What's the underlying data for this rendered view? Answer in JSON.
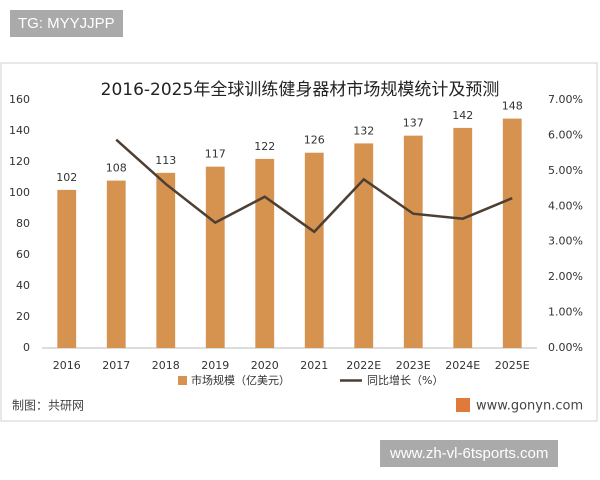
{
  "overlay_top": "TG: MYYJJPP",
  "overlay_bottom": "www.zh-vl-6tsports.com",
  "chart_data": {
    "type": "bar-line",
    "title": "2016-2025年全球训练健身器材市场规模统计及预测",
    "categories": [
      "2016",
      "2017",
      "2018",
      "2019",
      "2020",
      "2021",
      "2022E",
      "2023E",
      "2024E",
      "2025E"
    ],
    "series": [
      {
        "name": "市场规模（亿美元）",
        "type": "bar",
        "color": "#d6924f",
        "values": [
          102,
          108,
          113,
          117,
          122,
          126,
          132,
          137,
          142,
          148
        ]
      },
      {
        "name": "同比增长（%）",
        "type": "line",
        "axis": "y2",
        "color": "#4d3f33",
        "values": [
          null,
          5.88,
          4.63,
          3.54,
          4.27,
          3.28,
          4.76,
          3.79,
          3.65,
          4.23
        ]
      }
    ],
    "ylim": [
      0,
      160
    ],
    "yticks": [
      0,
      20,
      40,
      60,
      80,
      100,
      120,
      140,
      160
    ],
    "y2lim": [
      0,
      7
    ],
    "y2ticks": [
      {
        "value": 0,
        "label": "0.00%"
      },
      {
        "value": 1,
        "label": "1.00%"
      },
      {
        "value": 2,
        "label": "2.00%"
      },
      {
        "value": 3,
        "label": "3.00%"
      },
      {
        "value": 4,
        "label": "4.00%"
      },
      {
        "value": 5,
        "label": "5.00%"
      },
      {
        "value": 6,
        "label": "6.00%"
      },
      {
        "value": 7,
        "label": "7.00%"
      }
    ],
    "grid": false,
    "legend": "bottom",
    "source": "制图：共研网",
    "website": "www.gonyn.com"
  }
}
